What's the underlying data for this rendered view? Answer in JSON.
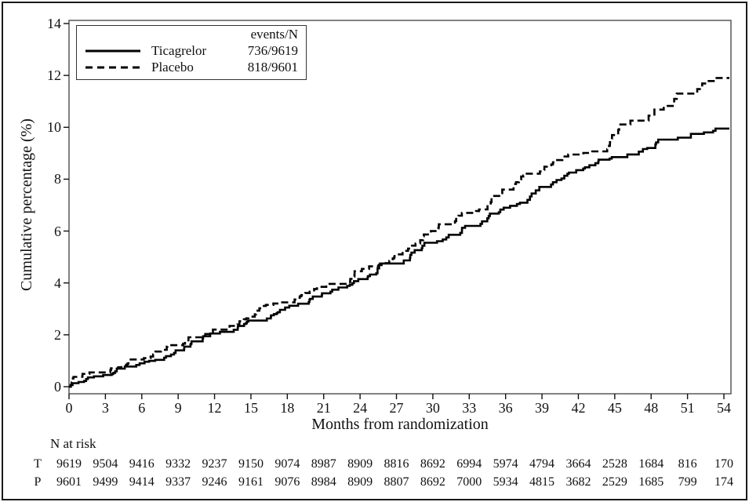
{
  "figure": {
    "legend": {
      "header": "events/N",
      "items": [
        {
          "name": "Ticagrelor",
          "events_n": "736/9619",
          "line": "solid"
        },
        {
          "name": "Placebo",
          "events_n": "818/9601",
          "line": "dashed"
        }
      ]
    },
    "n_at_risk": {
      "title": "N at risk",
      "rows": [
        {
          "label": "T",
          "values": [
            9619,
            9504,
            9416,
            9332,
            9237,
            9150,
            9074,
            8987,
            8909,
            8816,
            8692,
            6994,
            5974,
            4794,
            3664,
            2528,
            1684,
            816,
            170
          ]
        },
        {
          "label": "P",
          "values": [
            9601,
            9499,
            9414,
            9337,
            9246,
            9161,
            9076,
            8984,
            8909,
            8807,
            8692,
            7000,
            5934,
            4815,
            3682,
            2529,
            1685,
            799,
            174
          ]
        }
      ]
    }
  },
  "chart_data": {
    "type": "line",
    "subtype": "kaplan-meier-cumulative-incidence-step-curves",
    "title": "",
    "xlabel": "Months from randomization",
    "ylabel": "Cumulative percentage (%)",
    "x": [
      0,
      3,
      6,
      9,
      12,
      15,
      18,
      21,
      24,
      27,
      30,
      33,
      36,
      39,
      42,
      45,
      48,
      51,
      54
    ],
    "y_ticks": [
      0,
      2,
      4,
      6,
      8,
      10,
      12,
      14
    ],
    "xlim": [
      0,
      54
    ],
    "ylim": [
      0,
      14
    ],
    "grid": false,
    "legend_position": "top-left",
    "series": [
      {
        "name": "Ticagrelor",
        "events_n": "736/9619",
        "line": "solid",
        "color": "#000000",
        "values": [
          0,
          0.45,
          0.9,
          1.4,
          2.05,
          2.55,
          3.05,
          3.6,
          4.15,
          4.75,
          5.55,
          6.2,
          6.9,
          7.7,
          8.35,
          8.85,
          9.2,
          9.6,
          9.95
        ]
      },
      {
        "name": "Placebo",
        "events_n": "818/9601",
        "line": "dashed",
        "color": "#000000",
        "values": [
          0,
          0.55,
          1.05,
          1.6,
          2.2,
          2.7,
          3.25,
          3.85,
          4.45,
          5.1,
          6.0,
          6.7,
          7.6,
          8.3,
          8.95,
          9.7,
          10.45,
          11.3,
          11.9
        ]
      }
    ]
  }
}
